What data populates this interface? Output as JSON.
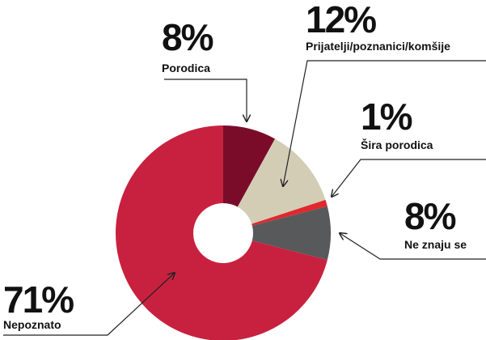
{
  "chart_data": {
    "type": "donut",
    "categories": [
      "Porodica",
      "Prijatelji/poznanici/komšije",
      "Šira porodica",
      "Ne znaju se",
      "Nepoznato"
    ],
    "values": [
      8,
      12,
      1,
      8,
      71
    ],
    "value_labels": [
      "8%",
      "12%",
      "1%",
      "8%",
      "71%"
    ],
    "colors": [
      "#7a0c2a",
      "#d3cdb6",
      "#e0282e",
      "#58595b",
      "#c8213f"
    ]
  }
}
